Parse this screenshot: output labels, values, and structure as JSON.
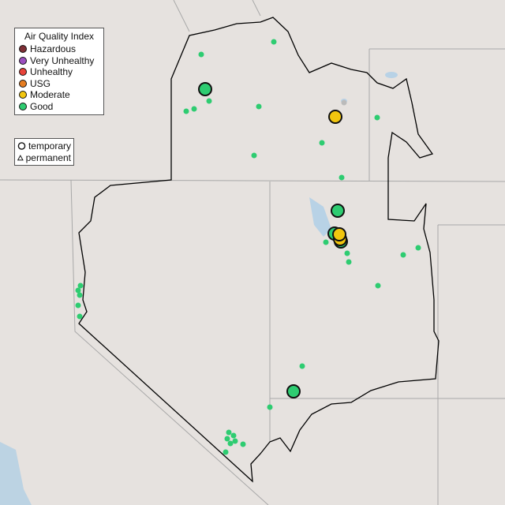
{
  "legend": {
    "title": "Air Quality Index",
    "categories": [
      {
        "label": "Hazardous",
        "color": "#7e2f35"
      },
      {
        "label": "Very Unhealthy",
        "color": "#9b4fbf"
      },
      {
        "label": "Unhealthy",
        "color": "#e8433a"
      },
      {
        "label": "USG",
        "color": "#e67d21"
      },
      {
        "label": "Moderate",
        "color": "#f2c60f"
      },
      {
        "label": "Good",
        "color": "#2ecc71"
      }
    ]
  },
  "monitor_types": [
    {
      "label": "temporary",
      "shape": "circle"
    },
    {
      "label": "permanent",
      "shape": "triangle"
    }
  ]
}
